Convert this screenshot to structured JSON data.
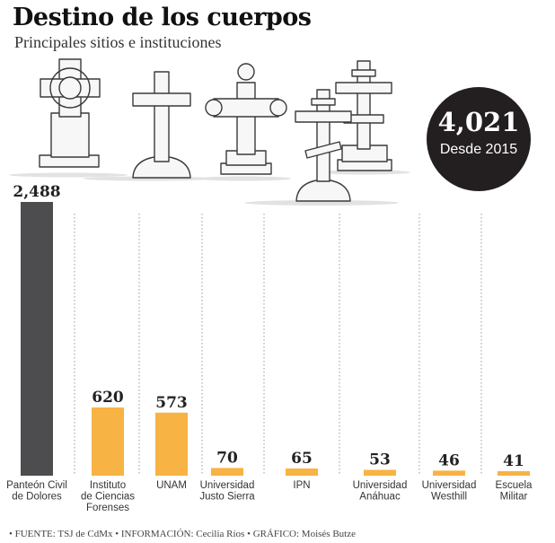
{
  "header": {
    "title": "Destino de los cuerpos",
    "subtitle": "Principales sitios e instituciones"
  },
  "total": {
    "value": "4,021",
    "caption": "Desde 2015"
  },
  "chart_data": {
    "type": "bar",
    "categories": [
      [
        "Panteón Civil",
        "de Dolores"
      ],
      [
        "Instituto",
        "de Ciencias",
        "Forenses"
      ],
      [
        "UNAM"
      ],
      [
        "Universidad",
        "Justo Sierra"
      ],
      [
        "IPN"
      ],
      [
        "Universidad",
        "Anáhuac"
      ],
      [
        "Universidad",
        "Westhill"
      ],
      [
        "Escuela",
        "Militar"
      ]
    ],
    "values": [
      2488,
      620,
      573,
      70,
      65,
      53,
      46,
      41
    ],
    "value_labels": [
      "2,488",
      "620",
      "573",
      "70",
      "65",
      "53",
      "46",
      "41"
    ],
    "colors": {
      "highlight": "#4d4d4f",
      "default": "#f7b343"
    },
    "highlight_index": 0,
    "ylim": [
      0,
      2488
    ]
  },
  "footer": {
    "text": "• FUENTE: TSJ de CdMx • INFORMACIÓN: Cecilia Ríos • GRÁFICO: Moisés Butze"
  }
}
